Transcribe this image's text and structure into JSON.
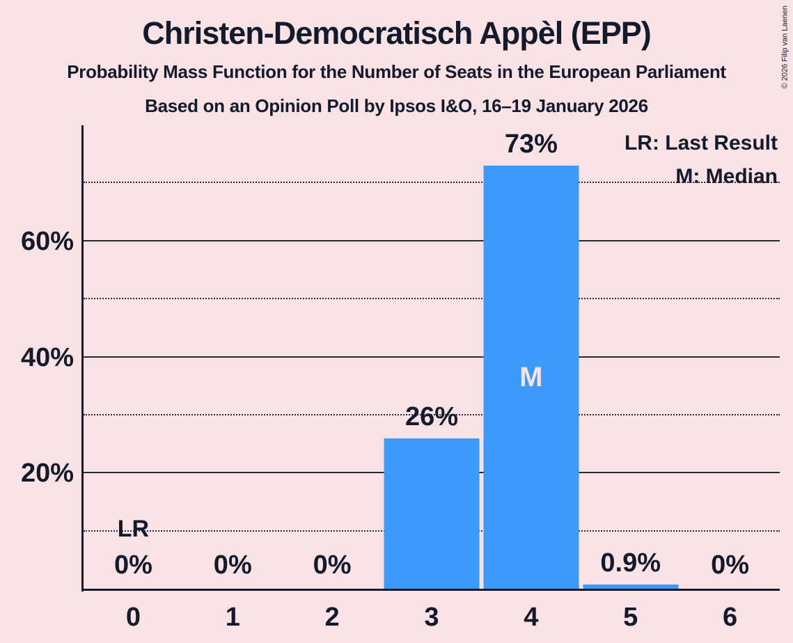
{
  "title": "Christen-Democratisch Appèl (EPP)",
  "subtitle": "Probability Mass Function for the Number of Seats in the European Parliament",
  "source_line": "Based on an Opinion Poll by Ipsos I&O, 16–19 January 2026",
  "copyright": "© 2026 Filip van Laenen",
  "legend": {
    "lr_label": "LR: Last Result",
    "m_label": "M: Median"
  },
  "colors": {
    "background": "#FBE3E5",
    "bar": "#3B9AFB",
    "text": "#131A2C"
  },
  "chart_data": {
    "type": "bar",
    "title": "Christen-Democratisch Appèl (EPP)",
    "subtitle": "Probability Mass Function for the Number of Seats in the European Parliament",
    "source_line": "Based on an Opinion Poll by Ipsos I&O, 16–19 January 2026",
    "categories": [
      "0",
      "1",
      "2",
      "3",
      "4",
      "5",
      "6"
    ],
    "values": [
      0,
      0,
      0,
      26,
      73,
      0.9,
      0
    ],
    "value_labels": [
      "0%",
      "0%",
      "0%",
      "26%",
      "73%",
      "0.9%",
      "0%"
    ],
    "xlabel": "",
    "ylabel": "",
    "ylim": [
      0,
      80
    ],
    "y_tick_labels": [
      "20%",
      "40%",
      "60%"
    ],
    "y_solid_gridlines": [
      20,
      40,
      60
    ],
    "y_dotted_gridlines": [
      10,
      30,
      50,
      70
    ],
    "grid": "horizontal",
    "legend_position": "top-right",
    "legend_entries": [
      "LR: Last Result",
      "M: Median"
    ],
    "last_result": {
      "label": "LR",
      "seat": 0
    },
    "median": {
      "label": "M",
      "seat": 4
    }
  }
}
